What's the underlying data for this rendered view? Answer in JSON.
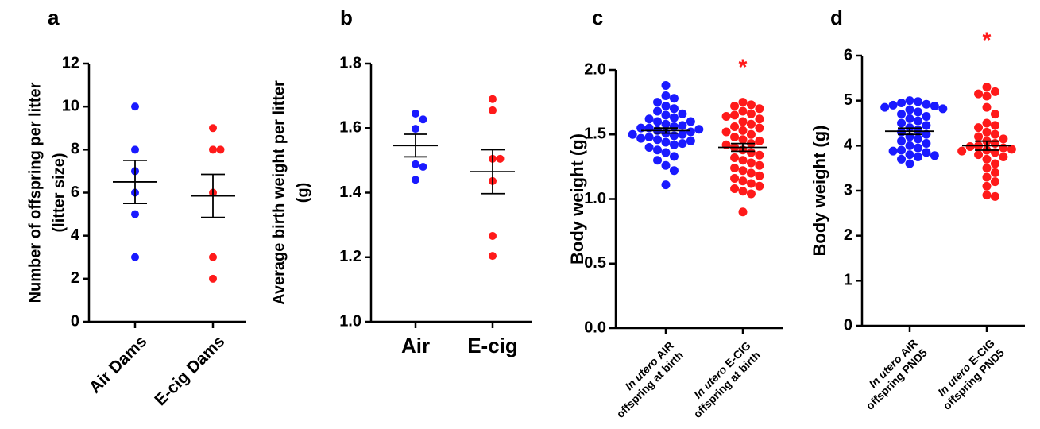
{
  "chart_data": [
    {
      "type": "dot",
      "panel": "a",
      "ylabel": [
        "Number of offspring per litter",
        "(litter size)"
      ],
      "ylim": [
        0,
        12
      ],
      "yticks": [
        0,
        2,
        4,
        6,
        8,
        10,
        12
      ],
      "groups": [
        {
          "label": [
            "Air Dams"
          ],
          "color": "#1a1aff",
          "values": [
            10,
            8,
            7,
            6,
            5,
            3
          ],
          "mean": 6.5,
          "sem": 1.0
        },
        {
          "label": [
            "E-cig Dams"
          ],
          "color": "#ff1a1a",
          "values": [
            9,
            8,
            8,
            6,
            3,
            2
          ],
          "mean": 5.85,
          "sem": 1.0
        }
      ]
    },
    {
      "type": "dot",
      "panel": "b",
      "ylabel": [
        "Average birth weight per litter",
        "(g)"
      ],
      "ylim": [
        1.0,
        1.8
      ],
      "yticks": [
        {
          "value": 1.0,
          "label": "1.0"
        },
        1.2,
        1.4,
        1.6,
        {
          "value": 1.8,
          "label": "1.8"
        }
      ],
      "groups": [
        {
          "label": [
            "Air"
          ],
          "color": "#1a1aff",
          "values": [
            1.645,
            1.627,
            1.598,
            1.488,
            1.48,
            1.44
          ],
          "mean": 1.546,
          "sem": 0.035
        },
        {
          "label": [
            "E-cig"
          ],
          "color": "#ff1a1a",
          "values": [
            1.69,
            1.655,
            1.505,
            1.505,
            1.436,
            1.266,
            1.204
          ],
          "mean": 1.465,
          "sem": 0.068
        }
      ]
    },
    {
      "type": "dot",
      "panel": "c",
      "ylabel": [
        "Body weight (g)"
      ],
      "ylim": [
        0,
        2.0
      ],
      "yticks": [
        {
          "value": 0,
          "label": "0.0"
        },
        0.5,
        {
          "value": 1,
          "label": "1.0"
        },
        1.5,
        {
          "value": 2,
          "label": "2.0"
        }
      ],
      "groups": [
        {
          "label_italic": "In utero",
          "label": [
            "AIR",
            "offspring at birth"
          ],
          "color": "#1a1aff",
          "values": [
            1.88,
            1.8,
            1.78,
            1.75,
            1.72,
            1.7,
            1.68,
            1.66,
            1.65,
            1.63,
            1.62,
            1.6,
            1.6,
            1.58,
            1.57,
            1.56,
            1.55,
            1.55,
            1.54,
            1.53,
            1.52,
            1.51,
            1.5,
            1.5,
            1.49,
            1.48,
            1.47,
            1.46,
            1.45,
            1.44,
            1.43,
            1.42,
            1.4,
            1.38,
            1.36,
            1.33,
            1.3,
            1.26,
            1.22,
            1.11
          ],
          "mean": 1.53,
          "sem": 0.02
        },
        {
          "label_italic": "In utero",
          "label": [
            "E-CIG",
            "offspring at birth"
          ],
          "color": "#ff1a1a",
          "annotation": "*",
          "values": [
            1.75,
            1.73,
            1.72,
            1.7,
            1.68,
            1.66,
            1.65,
            1.64,
            1.62,
            1.6,
            1.58,
            1.56,
            1.55,
            1.53,
            1.52,
            1.5,
            1.48,
            1.46,
            1.45,
            1.43,
            1.42,
            1.4,
            1.38,
            1.36,
            1.34,
            1.32,
            1.3,
            1.28,
            1.26,
            1.24,
            1.22,
            1.2,
            1.18,
            1.16,
            1.14,
            1.12,
            1.1,
            1.08,
            1.06,
            1.04,
            0.9
          ],
          "mean": 1.4,
          "sem": 0.03
        }
      ]
    },
    {
      "type": "dot",
      "panel": "d",
      "ylabel": [
        "Body weight (g)"
      ],
      "ylim": [
        0,
        6
      ],
      "yticks": [
        0,
        1,
        2,
        3,
        4,
        5,
        6
      ],
      "groups": [
        {
          "label_italic": "In utero",
          "label": [
            "AIR",
            "offspring PND5"
          ],
          "color": "#1a1aff",
          "values": [
            5.0,
            4.98,
            4.95,
            4.92,
            4.9,
            4.88,
            4.85,
            4.82,
            4.8,
            4.75,
            4.7,
            4.65,
            4.6,
            4.55,
            4.5,
            4.45,
            4.4,
            4.35,
            4.3,
            4.25,
            4.2,
            4.15,
            4.1,
            4.05,
            4.0,
            3.95,
            3.9,
            3.88,
            3.85,
            3.8,
            3.78,
            3.75,
            3.7,
            3.6
          ],
          "mean": 4.32,
          "sem": 0.07
        },
        {
          "label_italic": "In utero",
          "label": [
            "E-CIG",
            "offspring PND5"
          ],
          "color": "#ff1a1a",
          "annotation": "*",
          "values": [
            5.3,
            5.2,
            5.15,
            5.1,
            4.85,
            4.7,
            4.5,
            4.45,
            4.4,
            4.3,
            4.25,
            4.2,
            4.15,
            4.1,
            4.05,
            4.0,
            3.98,
            3.95,
            3.92,
            3.9,
            3.88,
            3.85,
            3.8,
            3.75,
            3.7,
            3.6,
            3.5,
            3.4,
            3.3,
            3.2,
            3.1,
            2.9,
            2.87
          ],
          "mean": 4.0,
          "sem": 0.1
        }
      ]
    }
  ]
}
